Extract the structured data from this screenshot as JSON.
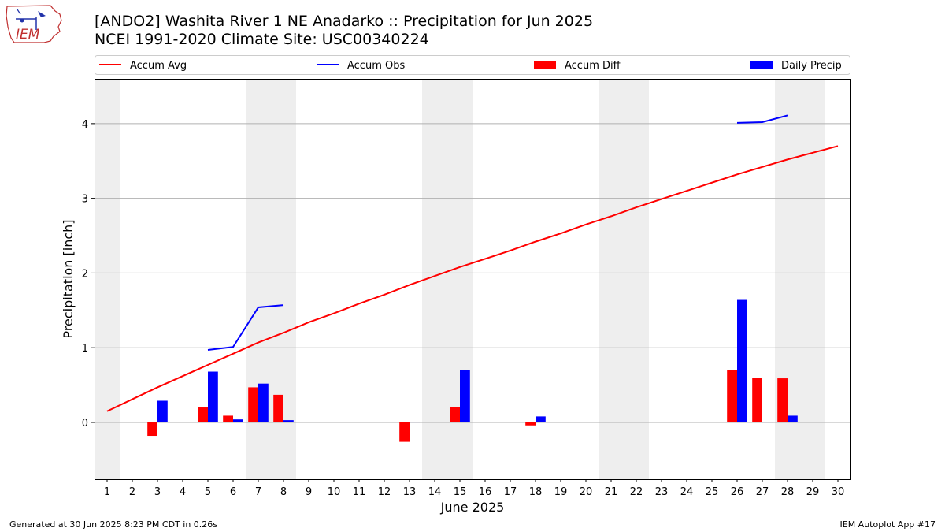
{
  "header": {
    "title_line1": "[ANDO2] Washita River 1 NE Anadarko :: Precipitation for Jun 2025",
    "title_line2": "NCEI 1991-2020 Climate Site: USC00340224"
  },
  "logo": {
    "text": "IEM"
  },
  "footer": {
    "generated": "Generated at 30 Jun 2025 8:23 PM CDT in 0.26s",
    "app": "IEM Autoplot App #17"
  },
  "colors": {
    "avg": "#ff0000",
    "obs": "#0000ff",
    "diff": "#ff0000",
    "daily": "#0000ff",
    "weekend": "#eeeeee",
    "grid": "#b0b0b0"
  },
  "chart_data": {
    "type": "bar",
    "xlabel": "June 2025",
    "ylabel": "Precipitation [inch]",
    "xlim": [
      0.5,
      30.5
    ],
    "ylim": [
      -0.76,
      4.6
    ],
    "yticks": [
      0,
      1,
      2,
      3,
      4
    ],
    "xticks": [
      1,
      2,
      3,
      4,
      5,
      6,
      7,
      8,
      9,
      10,
      11,
      12,
      13,
      14,
      15,
      16,
      17,
      18,
      19,
      20,
      21,
      22,
      23,
      24,
      25,
      26,
      27,
      28,
      29,
      30
    ],
    "grid": "horizontal",
    "legend_position": "top",
    "weekend_days": [
      1,
      7,
      8,
      14,
      15,
      21,
      22,
      28,
      29
    ],
    "legend": [
      {
        "label": "Accum Avg",
        "kind": "line",
        "color": "#ff0000"
      },
      {
        "label": "Accum Obs",
        "kind": "line",
        "color": "#0000ff"
      },
      {
        "label": "Accum Diff",
        "kind": "bar",
        "color": "#ff0000"
      },
      {
        "label": "Daily Precip",
        "kind": "bar",
        "color": "#0000ff"
      }
    ],
    "series": [
      {
        "name": "Accum Avg",
        "kind": "line",
        "x": [
          1,
          2,
          3,
          4,
          5,
          6,
          7,
          8,
          9,
          10,
          11,
          12,
          13,
          14,
          15,
          16,
          17,
          18,
          19,
          20,
          21,
          22,
          23,
          24,
          25,
          26,
          27,
          28,
          29,
          30
        ],
        "values": [
          0.15,
          0.31,
          0.47,
          0.62,
          0.77,
          0.92,
          1.07,
          1.2,
          1.34,
          1.46,
          1.59,
          1.71,
          1.84,
          1.96,
          2.08,
          2.19,
          2.3,
          2.42,
          2.53,
          2.65,
          2.76,
          2.88,
          2.99,
          3.1,
          3.21,
          3.32,
          3.42,
          3.52,
          3.61,
          3.7
        ]
      },
      {
        "name": "Accum Obs",
        "kind": "line",
        "segments": [
          {
            "x": [
              5,
              6,
              7,
              8
            ],
            "values": [
              0.97,
              1.01,
              1.54,
              1.57
            ]
          },
          {
            "x": [
              26,
              27,
              28
            ],
            "values": [
              4.01,
              4.02,
              4.11
            ]
          }
        ]
      },
      {
        "name": "Accum Diff",
        "kind": "bar",
        "x": [
          3,
          5,
          6,
          7,
          8,
          13,
          15,
          18,
          26,
          27,
          28
        ],
        "values": [
          -0.18,
          0.2,
          0.09,
          0.47,
          0.37,
          -0.26,
          0.21,
          -0.04,
          0.7,
          0.6,
          0.59
        ]
      },
      {
        "name": "Daily Precip",
        "kind": "bar",
        "x": [
          3,
          5,
          6,
          7,
          8,
          13,
          15,
          18,
          26,
          27,
          28
        ],
        "values": [
          0.29,
          0.68,
          0.04,
          0.52,
          0.03,
          0.01,
          0.7,
          0.08,
          1.64,
          0.01,
          0.09
        ]
      }
    ]
  }
}
